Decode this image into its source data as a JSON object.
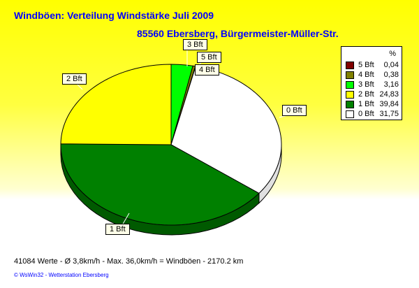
{
  "chart_data": {
    "type": "pie",
    "title": "Windböen: Verteilung Windstärke  Juli 2009",
    "subtitle": "85560 Ebersberg, Bürgermeister-Müller-Str.",
    "legend_header": "%",
    "legend_placement": "right",
    "slices": [
      {
        "label": "3 Bft",
        "value": 3.16,
        "value_text": "3,16",
        "color": "#00ff00"
      },
      {
        "label": "4 Bft",
        "value": 0.38,
        "value_text": "0,38",
        "color": "#808000"
      },
      {
        "label": "5 Bft",
        "value": 0.04,
        "value_text": "0,04",
        "color": "#800000"
      },
      {
        "label": "0 Bft",
        "value": 31.75,
        "value_text": "31,75",
        "color": "#ffffff"
      },
      {
        "label": "1 Bft",
        "value": 39.84,
        "value_text": "39,84",
        "color": "#008000"
      },
      {
        "label": "2 Bft",
        "value": 24.83,
        "value_text": "24,83",
        "color": "#ffff00"
      }
    ],
    "legend_order": [
      2,
      1,
      0,
      5,
      4,
      3
    ]
  },
  "footer": {
    "stats": "41084 Werte   -   Ø 3,8km/h  -  Max. 36,0km/h = Windböen   -   2170.2 km",
    "credit": "© WsWin32   -   Wetterstation Ebersberg"
  }
}
